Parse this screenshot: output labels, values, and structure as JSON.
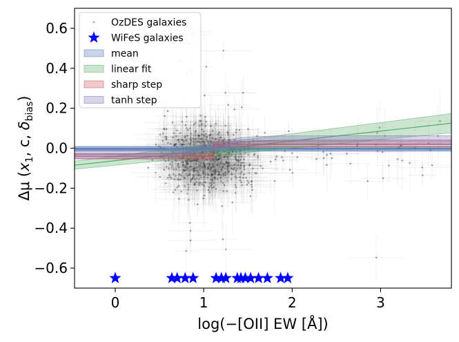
{
  "chart_data": {
    "type": "scatter",
    "title": "",
    "xlabel": "log(−[OII] EW [Å])",
    "ylabel": "Δμ (x₁, c, δbias)",
    "ylabel_parts": {
      "prefix": "Δμ (",
      "x1_base": "x",
      "x1_sub": "1",
      "c_part": ", c, ",
      "delta": "δ",
      "bias_sub": "bias",
      "suffix": ")"
    },
    "xlim": [
      -0.46,
      3.8
    ],
    "ylim": [
      -0.7,
      0.7
    ],
    "xticks": [
      0,
      1,
      2,
      3
    ],
    "xtick_labels": [
      "0",
      "1",
      "2",
      "3"
    ],
    "yticks": [
      -0.6,
      -0.4,
      -0.2,
      0.0,
      0.2,
      0.4,
      0.6
    ],
    "ytick_labels": [
      "−0.6",
      "−0.4",
      "−0.2",
      "0.0",
      "0.2",
      "0.4",
      "0.6"
    ],
    "legend_position": "top-left",
    "legend": [
      {
        "label": "OzDES galaxies",
        "kind": "dot",
        "color": "#c9b99a"
      },
      {
        "label": "WiFeS galaxies",
        "kind": "star",
        "color": "#0000ff"
      },
      {
        "label": "mean",
        "kind": "patch",
        "color": "#4c72b0"
      },
      {
        "label": "linear fit",
        "kind": "patch",
        "color": "#55a868"
      },
      {
        "label": "sharp step",
        "kind": "patch",
        "color": "#c44e52"
      },
      {
        "label": "tanh step",
        "kind": "patch",
        "color": "#8172b2"
      }
    ],
    "series": [
      {
        "name": "WiFeS galaxies",
        "marker": "star",
        "color": "#0000ff",
        "x": [
          0.0,
          0.64,
          0.7,
          0.79,
          0.88,
          1.14,
          1.2,
          1.25,
          1.38,
          1.42,
          1.47,
          1.53,
          1.62,
          1.72,
          1.87,
          1.95
        ],
        "y": [
          -0.65,
          -0.65,
          -0.65,
          -0.65,
          -0.65,
          -0.65,
          -0.65,
          -0.65,
          -0.65,
          -0.65,
          -0.65,
          -0.65,
          -0.65,
          -0.65,
          -0.65,
          -0.65
        ]
      },
      {
        "name": "OzDES galaxies",
        "marker": "point-with-errorbars",
        "color": "#000000",
        "n_points": 900,
        "x_center": 1.05,
        "x_spread": 0.55,
        "y_center": -0.05,
        "y_spread": 0.13
      }
    ],
    "fits": [
      {
        "name": "mean",
        "color": "#4c72b0",
        "type": "constant",
        "value": -0.003,
        "band": 0.012
      },
      {
        "name": "linear fit",
        "color": "#55a868",
        "type": "linear",
        "x": [
          -0.46,
          3.8
        ],
        "y": [
          -0.085,
          0.125
        ],
        "band_start": 0.02,
        "band_end": 0.028
      },
      {
        "name": "sharp step",
        "color": "#c44e52",
        "type": "step",
        "step_x": 1.11,
        "low": -0.04,
        "high": 0.02,
        "band": 0.014
      },
      {
        "name": "tanh step",
        "color": "#8172b2",
        "type": "tanh",
        "center": 1.11,
        "width": 0.35,
        "low": -0.03,
        "high": 0.04,
        "band": 0.022
      }
    ]
  }
}
